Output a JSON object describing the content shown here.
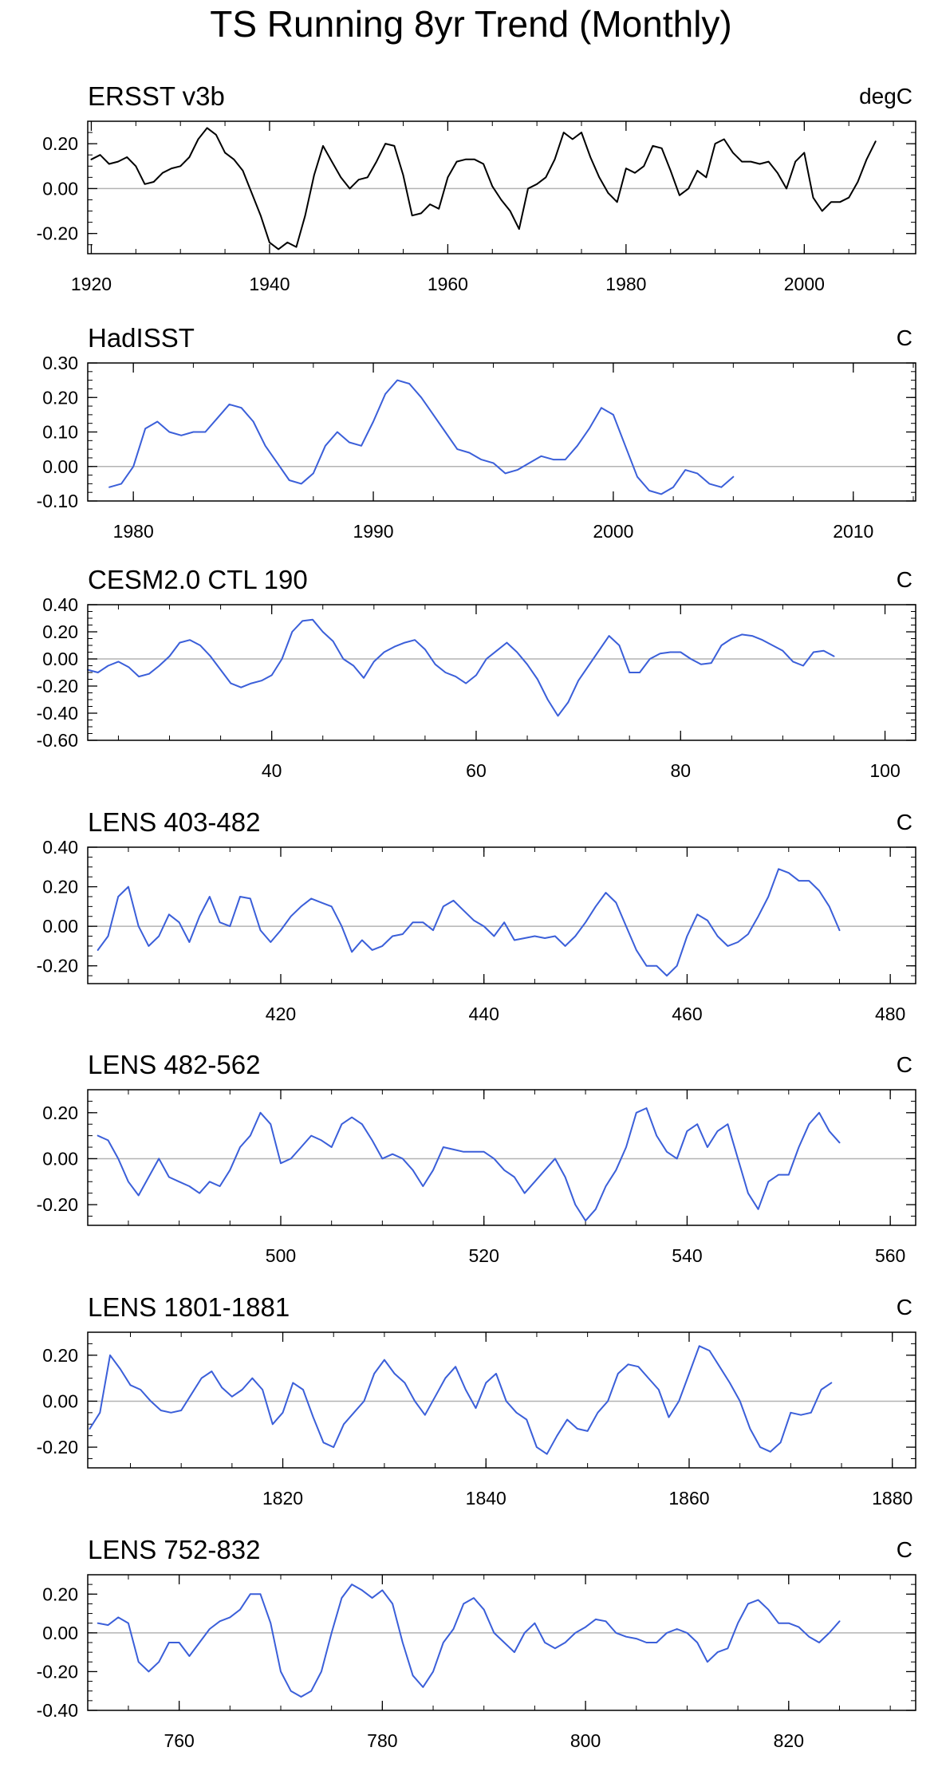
{
  "title": "TS Running 8yr Trend (Monthly)",
  "chart_data": [
    {
      "type": "line",
      "title": "ERSST v3b",
      "units": "degC",
      "color": "#000000",
      "xlim": [
        1919.6,
        2012.5
      ],
      "ylim": [
        -0.29,
        0.3
      ],
      "xticks": [
        1920,
        1940,
        1960,
        1980,
        2000
      ],
      "xtick_labels": [
        "1920",
        "1940",
        "1960",
        "1980",
        "2000"
      ],
      "yticks": [
        -0.2,
        0.0,
        0.2
      ],
      "ytick_labels": [
        "-0.20",
        "0.00",
        "0.20"
      ],
      "zero_line": true,
      "x": [
        1920,
        1921,
        1922,
        1923,
        1924,
        1925,
        1926,
        1927,
        1928,
        1929,
        1930,
        1931,
        1932,
        1933,
        1934,
        1935,
        1936,
        1937,
        1938,
        1939,
        1940,
        1941,
        1942,
        1943,
        1944,
        1945,
        1946,
        1947,
        1948,
        1949,
        1950,
        1951,
        1952,
        1953,
        1954,
        1955,
        1956,
        1957,
        1958,
        1959,
        1960,
        1961,
        1962,
        1963,
        1964,
        1965,
        1966,
        1967,
        1968,
        1969,
        1970,
        1971,
        1972,
        1973,
        1974,
        1975,
        1976,
        1977,
        1978,
        1979,
        1980,
        1981,
        1982,
        1983,
        1984,
        1985,
        1986,
        1987,
        1988,
        1989,
        1990,
        1991,
        1992,
        1993,
        1994,
        1995,
        1996,
        1997,
        1998,
        1999,
        2000,
        2001,
        2002,
        2003,
        2004,
        2005,
        2006,
        2007,
        2008
      ],
      "y": [
        0.13,
        0.15,
        0.11,
        0.12,
        0.14,
        0.1,
        0.02,
        0.03,
        0.07,
        0.09,
        0.1,
        0.14,
        0.22,
        0.27,
        0.24,
        0.16,
        0.13,
        0.08,
        -0.02,
        -0.12,
        -0.24,
        -0.27,
        -0.24,
        -0.26,
        -0.12,
        0.06,
        0.19,
        0.12,
        0.05,
        0.0,
        0.04,
        0.05,
        0.12,
        0.2,
        0.19,
        0.06,
        -0.12,
        -0.11,
        -0.07,
        -0.09,
        0.05,
        0.12,
        0.13,
        0.13,
        0.11,
        0.01,
        -0.05,
        -0.1,
        -0.18,
        0.0,
        0.02,
        0.05,
        0.13,
        0.25,
        0.22,
        0.25,
        0.14,
        0.05,
        -0.02,
        -0.06,
        0.09,
        0.07,
        0.1,
        0.19,
        0.18,
        0.08,
        -0.03,
        0.0,
        0.08,
        0.05,
        0.2,
        0.22,
        0.16,
        0.12,
        0.12,
        0.11,
        0.12,
        0.07,
        0.0,
        0.12,
        0.16,
        -0.04,
        -0.1,
        -0.06,
        -0.06,
        -0.04,
        0.03,
        0.13,
        0.21
      ]
    },
    {
      "type": "line",
      "title": "HadISST",
      "units": "C",
      "color": "#3b5fd9",
      "xlim": [
        1978.1,
        2012.6
      ],
      "ylim": [
        -0.1,
        0.3
      ],
      "xticks": [
        1980,
        1990,
        2000,
        2010
      ],
      "xtick_labels": [
        "1980",
        "1990",
        "2000",
        "2010"
      ],
      "yticks": [
        -0.1,
        0.0,
        0.1,
        0.2,
        0.3
      ],
      "ytick_labels": [
        "-0.10",
        "0.00",
        "0.10",
        "0.20",
        "0.30"
      ],
      "zero_line": true,
      "x": [
        1979.0,
        1979.5,
        1980.0,
        1980.5,
        1981.0,
        1981.5,
        1982.0,
        1982.5,
        1983.0,
        1983.5,
        1984.0,
        1984.5,
        1985.0,
        1985.5,
        1986.0,
        1986.5,
        1987.0,
        1987.5,
        1988.0,
        1988.5,
        1989.0,
        1989.5,
        1990.0,
        1990.5,
        1991.0,
        1991.5,
        1992.0,
        1992.5,
        1993.0,
        1993.5,
        1994.0,
        1994.5,
        1995.0,
        1995.5,
        1996.0,
        1996.5,
        1997.0,
        1997.5,
        1998.0,
        1998.5,
        1999.0,
        1999.5,
        2000.0,
        2000.5,
        2001.0,
        2001.5,
        2002.0,
        2002.5,
        2003.0,
        2003.5,
        2004.0,
        2004.5,
        2005.0
      ],
      "y": [
        -0.06,
        -0.05,
        0.0,
        0.11,
        0.13,
        0.1,
        0.09,
        0.1,
        0.1,
        0.14,
        0.18,
        0.17,
        0.13,
        0.06,
        0.01,
        -0.04,
        -0.05,
        -0.02,
        0.06,
        0.1,
        0.07,
        0.06,
        0.13,
        0.21,
        0.25,
        0.24,
        0.2,
        0.15,
        0.1,
        0.05,
        0.04,
        0.02,
        0.01,
        -0.02,
        -0.01,
        0.01,
        0.03,
        0.02,
        0.02,
        0.06,
        0.11,
        0.17,
        0.15,
        0.06,
        -0.03,
        -0.07,
        -0.08,
        -0.06,
        -0.01,
        -0.02,
        -0.05,
        -0.06,
        -0.03
      ]
    },
    {
      "type": "line",
      "title": "CESM2.0 CTL 190",
      "units": "C",
      "color": "#3b5fd9",
      "xlim": [
        22.0,
        103.0
      ],
      "ylim": [
        -0.6,
        0.4
      ],
      "xticks": [
        40,
        60,
        80,
        100
      ],
      "xtick_labels": [
        "40",
        "60",
        "80",
        "100"
      ],
      "yticks": [
        -0.6,
        -0.4,
        -0.2,
        0.0,
        0.2,
        0.4
      ],
      "ytick_labels": [
        "-0.60",
        "-0.40",
        "-0.20",
        "0.00",
        "0.20",
        "0.40"
      ],
      "zero_line": true,
      "x": [
        22,
        23,
        24,
        25,
        26,
        27,
        28,
        29,
        30,
        31,
        32,
        33,
        34,
        35,
        36,
        37,
        38,
        39,
        40,
        41,
        42,
        43,
        44,
        45,
        46,
        47,
        48,
        49,
        50,
        51,
        52,
        53,
        54,
        55,
        56,
        57,
        58,
        59,
        60,
        61,
        62,
        63,
        64,
        65,
        66,
        67,
        68,
        69,
        70,
        71,
        72,
        73,
        74,
        75,
        76,
        77,
        78,
        79,
        80,
        81,
        82,
        83,
        84,
        85,
        86,
        87,
        88,
        89,
        90,
        91,
        92,
        93,
        94,
        95
      ],
      "y": [
        -0.08,
        -0.1,
        -0.05,
        -0.02,
        -0.06,
        -0.13,
        -0.11,
        -0.05,
        0.02,
        0.12,
        0.14,
        0.1,
        0.02,
        -0.08,
        -0.18,
        -0.21,
        -0.18,
        -0.16,
        -0.12,
        0.0,
        0.2,
        0.28,
        0.29,
        0.2,
        0.13,
        0.0,
        -0.05,
        -0.14,
        -0.02,
        0.05,
        0.09,
        0.12,
        0.14,
        0.07,
        -0.04,
        -0.1,
        -0.13,
        -0.18,
        -0.12,
        0.0,
        0.06,
        0.12,
        0.05,
        -0.04,
        -0.15,
        -0.3,
        -0.42,
        -0.32,
        -0.16,
        -0.05,
        0.06,
        0.17,
        0.1,
        -0.1,
        -0.1,
        0.0,
        0.04,
        0.05,
        0.05,
        0.0,
        -0.04,
        -0.03,
        0.1,
        0.15,
        0.18,
        0.17,
        0.14,
        0.1,
        0.06,
        -0.02,
        -0.05,
        0.05,
        0.06,
        0.02
      ]
    },
    {
      "type": "line",
      "title": "LENS 403-482",
      "units": "C",
      "color": "#3b5fd9",
      "xlim": [
        401.0,
        482.5
      ],
      "ylim": [
        -0.29,
        0.4
      ],
      "xticks": [
        420,
        440,
        460,
        480
      ],
      "xtick_labels": [
        "420",
        "440",
        "460",
        "480"
      ],
      "yticks": [
        -0.2,
        0.0,
        0.2,
        0.4
      ],
      "ytick_labels": [
        "-0.20",
        "0.00",
        "0.20",
        "0.40"
      ],
      "zero_line": true,
      "x": [
        402,
        403,
        404,
        405,
        406,
        407,
        408,
        409,
        410,
        411,
        412,
        413,
        414,
        415,
        416,
        417,
        418,
        419,
        420,
        421,
        422,
        423,
        424,
        425,
        426,
        427,
        428,
        429,
        430,
        431,
        432,
        433,
        434,
        435,
        436,
        437,
        438,
        439,
        440,
        441,
        442,
        443,
        444,
        445,
        446,
        447,
        448,
        449,
        450,
        451,
        452,
        453,
        454,
        455,
        456,
        457,
        458,
        459,
        460,
        461,
        462,
        463,
        464,
        465,
        466,
        467,
        468,
        469,
        470,
        471,
        472,
        473,
        474,
        475
      ],
      "y": [
        -0.12,
        -0.05,
        0.15,
        0.2,
        0.0,
        -0.1,
        -0.05,
        0.06,
        0.02,
        -0.08,
        0.05,
        0.15,
        0.02,
        0.0,
        0.15,
        0.14,
        -0.02,
        -0.08,
        -0.02,
        0.05,
        0.1,
        0.14,
        0.12,
        0.1,
        0.0,
        -0.13,
        -0.07,
        -0.12,
        -0.1,
        -0.05,
        -0.04,
        0.02,
        0.02,
        -0.02,
        0.1,
        0.13,
        0.08,
        0.03,
        0.0,
        -0.05,
        0.02,
        -0.07,
        -0.06,
        -0.05,
        -0.06,
        -0.05,
        -0.1,
        -0.05,
        0.02,
        0.1,
        0.17,
        0.12,
        0.0,
        -0.12,
        -0.2,
        -0.2,
        -0.25,
        -0.2,
        -0.05,
        0.06,
        0.03,
        -0.05,
        -0.1,
        -0.08,
        -0.04,
        0.05,
        0.15,
        0.29,
        0.27,
        0.23,
        0.23,
        0.18,
        0.1,
        -0.02
      ]
    },
    {
      "type": "line",
      "title": "LENS 482-562",
      "units": "C",
      "color": "#3b5fd9",
      "xlim": [
        481.0,
        562.5
      ],
      "ylim": [
        -0.29,
        0.3
      ],
      "xticks": [
        500,
        520,
        540,
        560
      ],
      "xtick_labels": [
        "500",
        "520",
        "540",
        "560"
      ],
      "yticks": [
        -0.2,
        0.0,
        0.2
      ],
      "ytick_labels": [
        "-0.20",
        "0.00",
        "0.20"
      ],
      "zero_line": true,
      "x": [
        482,
        483,
        484,
        485,
        486,
        487,
        488,
        489,
        490,
        491,
        492,
        493,
        494,
        495,
        496,
        497,
        498,
        499,
        500,
        501,
        502,
        503,
        504,
        505,
        506,
        507,
        508,
        509,
        510,
        511,
        512,
        513,
        514,
        515,
        516,
        517,
        518,
        519,
        520,
        521,
        522,
        523,
        524,
        525,
        526,
        527,
        528,
        529,
        530,
        531,
        532,
        533,
        534,
        535,
        536,
        537,
        538,
        539,
        540,
        541,
        542,
        543,
        544,
        545,
        546,
        547,
        548,
        549,
        550,
        551,
        552,
        553,
        554,
        555
      ],
      "y": [
        0.1,
        0.08,
        0.0,
        -0.1,
        -0.16,
        -0.08,
        0.0,
        -0.08,
        -0.1,
        -0.12,
        -0.15,
        -0.1,
        -0.12,
        -0.05,
        0.05,
        0.1,
        0.2,
        0.15,
        -0.02,
        0.0,
        0.05,
        0.1,
        0.08,
        0.05,
        0.15,
        0.18,
        0.15,
        0.08,
        0.0,
        0.02,
        0.0,
        -0.05,
        -0.12,
        -0.05,
        0.05,
        0.04,
        0.03,
        0.03,
        0.03,
        0.0,
        -0.05,
        -0.08,
        -0.15,
        -0.1,
        -0.05,
        0.0,
        -0.08,
        -0.2,
        -0.27,
        -0.22,
        -0.12,
        -0.05,
        0.05,
        0.2,
        0.22,
        0.1,
        0.03,
        0.0,
        0.12,
        0.15,
        0.05,
        0.12,
        0.15,
        0.0,
        -0.15,
        -0.22,
        -0.1,
        -0.07,
        -0.07,
        0.05,
        0.15,
        0.2,
        0.12,
        0.07
      ]
    },
    {
      "type": "line",
      "title": "LENS 1801-1881",
      "units": "C",
      "color": "#3b5fd9",
      "xlim": [
        1800.8,
        1882.3
      ],
      "ylim": [
        -0.29,
        0.3
      ],
      "xticks": [
        1820,
        1840,
        1860,
        1880
      ],
      "xtick_labels": [
        "1820",
        "1840",
        "1860",
        "1880"
      ],
      "yticks": [
        -0.2,
        0.0,
        0.2
      ],
      "ytick_labels": [
        "-0.20",
        "0.00",
        "0.20"
      ],
      "zero_line": true,
      "x": [
        1801,
        1802,
        1803,
        1804,
        1805,
        1806,
        1807,
        1808,
        1809,
        1810,
        1811,
        1812,
        1813,
        1814,
        1815,
        1816,
        1817,
        1818,
        1819,
        1820,
        1821,
        1822,
        1823,
        1824,
        1825,
        1826,
        1827,
        1828,
        1829,
        1830,
        1831,
        1832,
        1833,
        1834,
        1835,
        1836,
        1837,
        1838,
        1839,
        1840,
        1841,
        1842,
        1843,
        1844,
        1845,
        1846,
        1847,
        1848,
        1849,
        1850,
        1851,
        1852,
        1853,
        1854,
        1855,
        1856,
        1857,
        1858,
        1859,
        1860,
        1861,
        1862,
        1863,
        1864,
        1865,
        1866,
        1867,
        1868,
        1869,
        1870,
        1871,
        1872,
        1873,
        1874
      ],
      "y": [
        -0.12,
        -0.05,
        0.2,
        0.14,
        0.07,
        0.05,
        0.0,
        -0.04,
        -0.05,
        -0.04,
        0.03,
        0.1,
        0.13,
        0.06,
        0.02,
        0.05,
        0.1,
        0.05,
        -0.1,
        -0.05,
        0.08,
        0.05,
        -0.07,
        -0.18,
        -0.2,
        -0.1,
        -0.05,
        0.0,
        0.12,
        0.18,
        0.12,
        0.08,
        0.0,
        -0.06,
        0.02,
        0.1,
        0.15,
        0.05,
        -0.03,
        0.08,
        0.12,
        0.0,
        -0.05,
        -0.08,
        -0.2,
        -0.23,
        -0.15,
        -0.08,
        -0.12,
        -0.13,
        -0.05,
        0.0,
        0.12,
        0.16,
        0.15,
        0.1,
        0.05,
        -0.07,
        0.0,
        0.12,
        0.24,
        0.22,
        0.15,
        0.08,
        0.0,
        -0.12,
        -0.2,
        -0.22,
        -0.18,
        -0.05,
        -0.06,
        -0.05,
        0.05,
        0.08
      ]
    },
    {
      "type": "line",
      "title": "LENS 752-832",
      "units": "C",
      "color": "#3b5fd9",
      "xlim": [
        751.0,
        832.5
      ],
      "ylim": [
        -0.4,
        0.3
      ],
      "xticks": [
        760,
        780,
        800,
        820
      ],
      "xtick_labels": [
        "760",
        "780",
        "800",
        "820"
      ],
      "yticks": [
        -0.4,
        -0.2,
        0.0,
        0.2
      ],
      "ytick_labels": [
        "-0.40",
        "-0.20",
        "0.00",
        "0.20"
      ],
      "zero_line": true,
      "x": [
        752,
        753,
        754,
        755,
        756,
        757,
        758,
        759,
        760,
        761,
        762,
        763,
        764,
        765,
        766,
        767,
        768,
        769,
        770,
        771,
        772,
        773,
        774,
        775,
        776,
        777,
        778,
        779,
        780,
        781,
        782,
        783,
        784,
        785,
        786,
        787,
        788,
        789,
        790,
        791,
        792,
        793,
        794,
        795,
        796,
        797,
        798,
        799,
        800,
        801,
        802,
        803,
        804,
        805,
        806,
        807,
        808,
        809,
        810,
        811,
        812,
        813,
        814,
        815,
        816,
        817,
        818,
        819,
        820,
        821,
        822,
        823,
        824,
        825
      ],
      "y": [
        0.05,
        0.04,
        0.08,
        0.05,
        -0.15,
        -0.2,
        -0.15,
        -0.05,
        -0.05,
        -0.12,
        -0.05,
        0.02,
        0.06,
        0.08,
        0.12,
        0.2,
        0.2,
        0.05,
        -0.2,
        -0.3,
        -0.33,
        -0.3,
        -0.2,
        0.0,
        0.18,
        0.25,
        0.22,
        0.18,
        0.22,
        0.15,
        -0.05,
        -0.22,
        -0.28,
        -0.2,
        -0.05,
        0.02,
        0.15,
        0.18,
        0.12,
        0.0,
        -0.05,
        -0.1,
        0.0,
        0.05,
        -0.05,
        -0.08,
        -0.05,
        0.0,
        0.03,
        0.07,
        0.06,
        0.0,
        -0.02,
        -0.03,
        -0.05,
        -0.05,
        0.0,
        0.02,
        0.0,
        -0.05,
        -0.15,
        -0.1,
        -0.08,
        0.05,
        0.15,
        0.17,
        0.12,
        0.05,
        0.05,
        0.03,
        -0.02,
        -0.05,
        0.0,
        0.06
      ]
    }
  ]
}
